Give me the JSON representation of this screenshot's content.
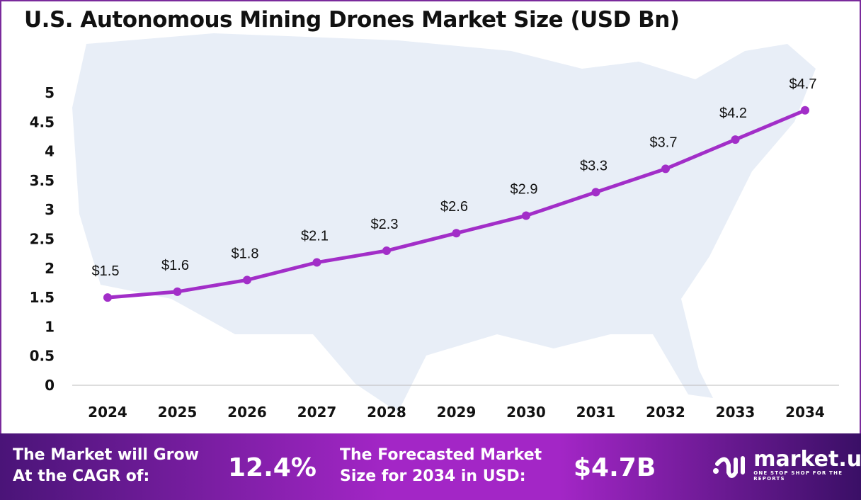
{
  "title": "U.S. Autonomous Mining Drones Market Size (USD Bn)",
  "chart_data": {
    "type": "line",
    "title": "U.S. Autonomous Mining Drones Market Size (USD Bn)",
    "categories": [
      "2024",
      "2025",
      "2026",
      "2027",
      "2028",
      "2029",
      "2030",
      "2031",
      "2032",
      "2033",
      "2034"
    ],
    "values": [
      1.5,
      1.6,
      1.8,
      2.1,
      2.3,
      2.6,
      2.9,
      3.3,
      3.7,
      4.2,
      4.7
    ],
    "labels": [
      "$1.5",
      "$1.6",
      "$1.8",
      "$2.1",
      "$2.3",
      "$2.6",
      "$2.9",
      "$3.3",
      "$3.7",
      "$4.2",
      "$4.7"
    ],
    "yticks": [
      "0",
      "0.5",
      "1",
      "1.5",
      "2",
      "2.5",
      "3",
      "3.5",
      "4",
      "4.5",
      "5"
    ],
    "ylim": [
      0,
      5
    ],
    "grid": false,
    "line_color": "#a22ec8"
  },
  "banner": {
    "cagr_text_1": "The Market will Grow",
    "cagr_text_2": "At the CAGR of:",
    "cagr_value": "12.4%",
    "forecast_text_1": "The Forecasted Market",
    "forecast_text_2": "Size for 2034 in USD:",
    "forecast_value": "$4.7B",
    "logo_name": "market.us",
    "logo_tagline": "ONE STOP SHOP FOR THE REPORTS"
  }
}
